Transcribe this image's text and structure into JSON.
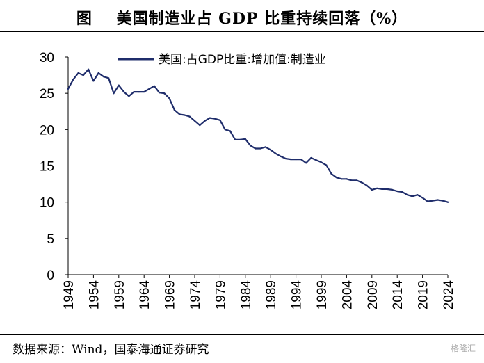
{
  "header": {
    "title": "图    美国制造业占 GDP 比重持续回落（%）"
  },
  "footer": {
    "source": "数据来源：Wind，国泰海通证券研究",
    "watermark": "格隆汇"
  },
  "colors": {
    "series": "#1f2d6b",
    "axis": "#000000"
  },
  "chart_data": {
    "type": "line",
    "title": "",
    "xlabel": "",
    "ylabel": "",
    "xlim": [
      1949,
      2024
    ],
    "ylim": [
      0,
      30
    ],
    "yticks": [
      0,
      5,
      10,
      15,
      20,
      25,
      30
    ],
    "xticks": [
      1949,
      1954,
      1959,
      1964,
      1969,
      1974,
      1979,
      1984,
      1989,
      1994,
      1999,
      2004,
      2009,
      2014,
      2019,
      2024
    ],
    "grid": false,
    "legend_position": "top",
    "series": [
      {
        "name": "美国:占GDP比重:增加值:制造业",
        "x": [
          1949,
          1950,
          1951,
          1952,
          1953,
          1954,
          1955,
          1956,
          1957,
          1958,
          1959,
          1960,
          1961,
          1962,
          1963,
          1964,
          1965,
          1966,
          1967,
          1968,
          1969,
          1970,
          1971,
          1972,
          1973,
          1974,
          1975,
          1976,
          1977,
          1978,
          1979,
          1980,
          1981,
          1982,
          1983,
          1984,
          1985,
          1986,
          1987,
          1988,
          1989,
          1990,
          1991,
          1992,
          1993,
          1994,
          1995,
          1996,
          1997,
          1998,
          1999,
          2000,
          2001,
          2002,
          2003,
          2004,
          2005,
          2006,
          2007,
          2008,
          2009,
          2010,
          2011,
          2012,
          2013,
          2014,
          2015,
          2016,
          2017,
          2018,
          2019,
          2020,
          2021,
          2022,
          2023,
          2024
        ],
        "values": [
          25.6,
          26.9,
          27.8,
          27.5,
          28.3,
          26.7,
          27.8,
          27.3,
          27.1,
          25.0,
          26.1,
          25.2,
          24.6,
          25.2,
          25.2,
          25.2,
          25.6,
          26.0,
          25.1,
          25.0,
          24.3,
          22.7,
          22.1,
          22.0,
          21.8,
          21.2,
          20.6,
          21.2,
          21.6,
          21.5,
          21.3,
          20.0,
          19.8,
          18.6,
          18.6,
          18.7,
          17.8,
          17.4,
          17.4,
          17.6,
          17.2,
          16.7,
          16.3,
          16.0,
          15.9,
          15.9,
          15.9,
          15.4,
          16.1,
          15.8,
          15.5,
          15.1,
          13.9,
          13.4,
          13.2,
          13.2,
          13.0,
          13.0,
          12.7,
          12.3,
          11.7,
          11.9,
          11.8,
          11.8,
          11.7,
          11.5,
          11.4,
          11.0,
          10.8,
          11.0,
          10.6,
          10.1,
          10.2,
          10.3,
          10.2,
          10.0
        ]
      }
    ]
  }
}
